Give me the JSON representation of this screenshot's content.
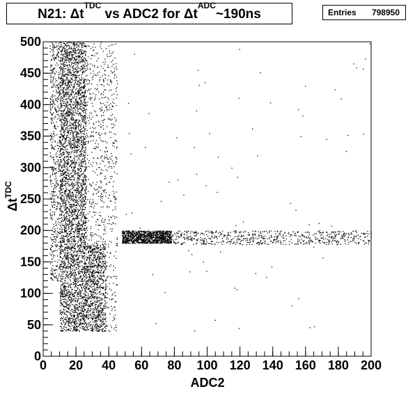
{
  "chart_data": {
    "type": "scatter",
    "title": {
      "prefix": "N21: ",
      "dt1": "Δt",
      "sup1": "TDC",
      "mid": " vs ADC2 for ",
      "dt2": "Δt",
      "sup2": "ADC",
      "suffix": "~190ns"
    },
    "stats": {
      "label": "Entries",
      "value": "798950"
    },
    "xlabel": "ADC2",
    "ylabel": {
      "base": "Δt",
      "sup": "TDC"
    },
    "xlim": [
      0,
      200
    ],
    "ylim": [
      0,
      500
    ],
    "x_ticks": [
      0,
      20,
      40,
      60,
      80,
      100,
      120,
      140,
      160,
      180,
      200
    ],
    "y_ticks": [
      0,
      50,
      100,
      150,
      200,
      250,
      300,
      350,
      400,
      450,
      500
    ],
    "grid": false,
    "marker_color": "#000000",
    "regions": [
      {
        "x": [
          10,
          26
        ],
        "y": [
          40,
          500
        ],
        "weight": 0.42
      },
      {
        "x": [
          4,
          10
        ],
        "y": [
          120,
          500
        ],
        "weight": 0.06
      },
      {
        "x": [
          26,
          45
        ],
        "y": [
          40,
          500
        ],
        "weight": 0.09
      },
      {
        "x": [
          26,
          38
        ],
        "y": [
          40,
          180
        ],
        "weight": 0.08
      },
      {
        "x": [
          48,
          78
        ],
        "y": [
          180,
          200
        ],
        "weight": 0.12
      },
      {
        "x": [
          78,
          200
        ],
        "y": [
          178,
          200
        ],
        "weight": 0.07
      },
      {
        "x": [
          30,
          200
        ],
        "y": [
          40,
          500
        ],
        "weight": 0.01
      }
    ]
  }
}
